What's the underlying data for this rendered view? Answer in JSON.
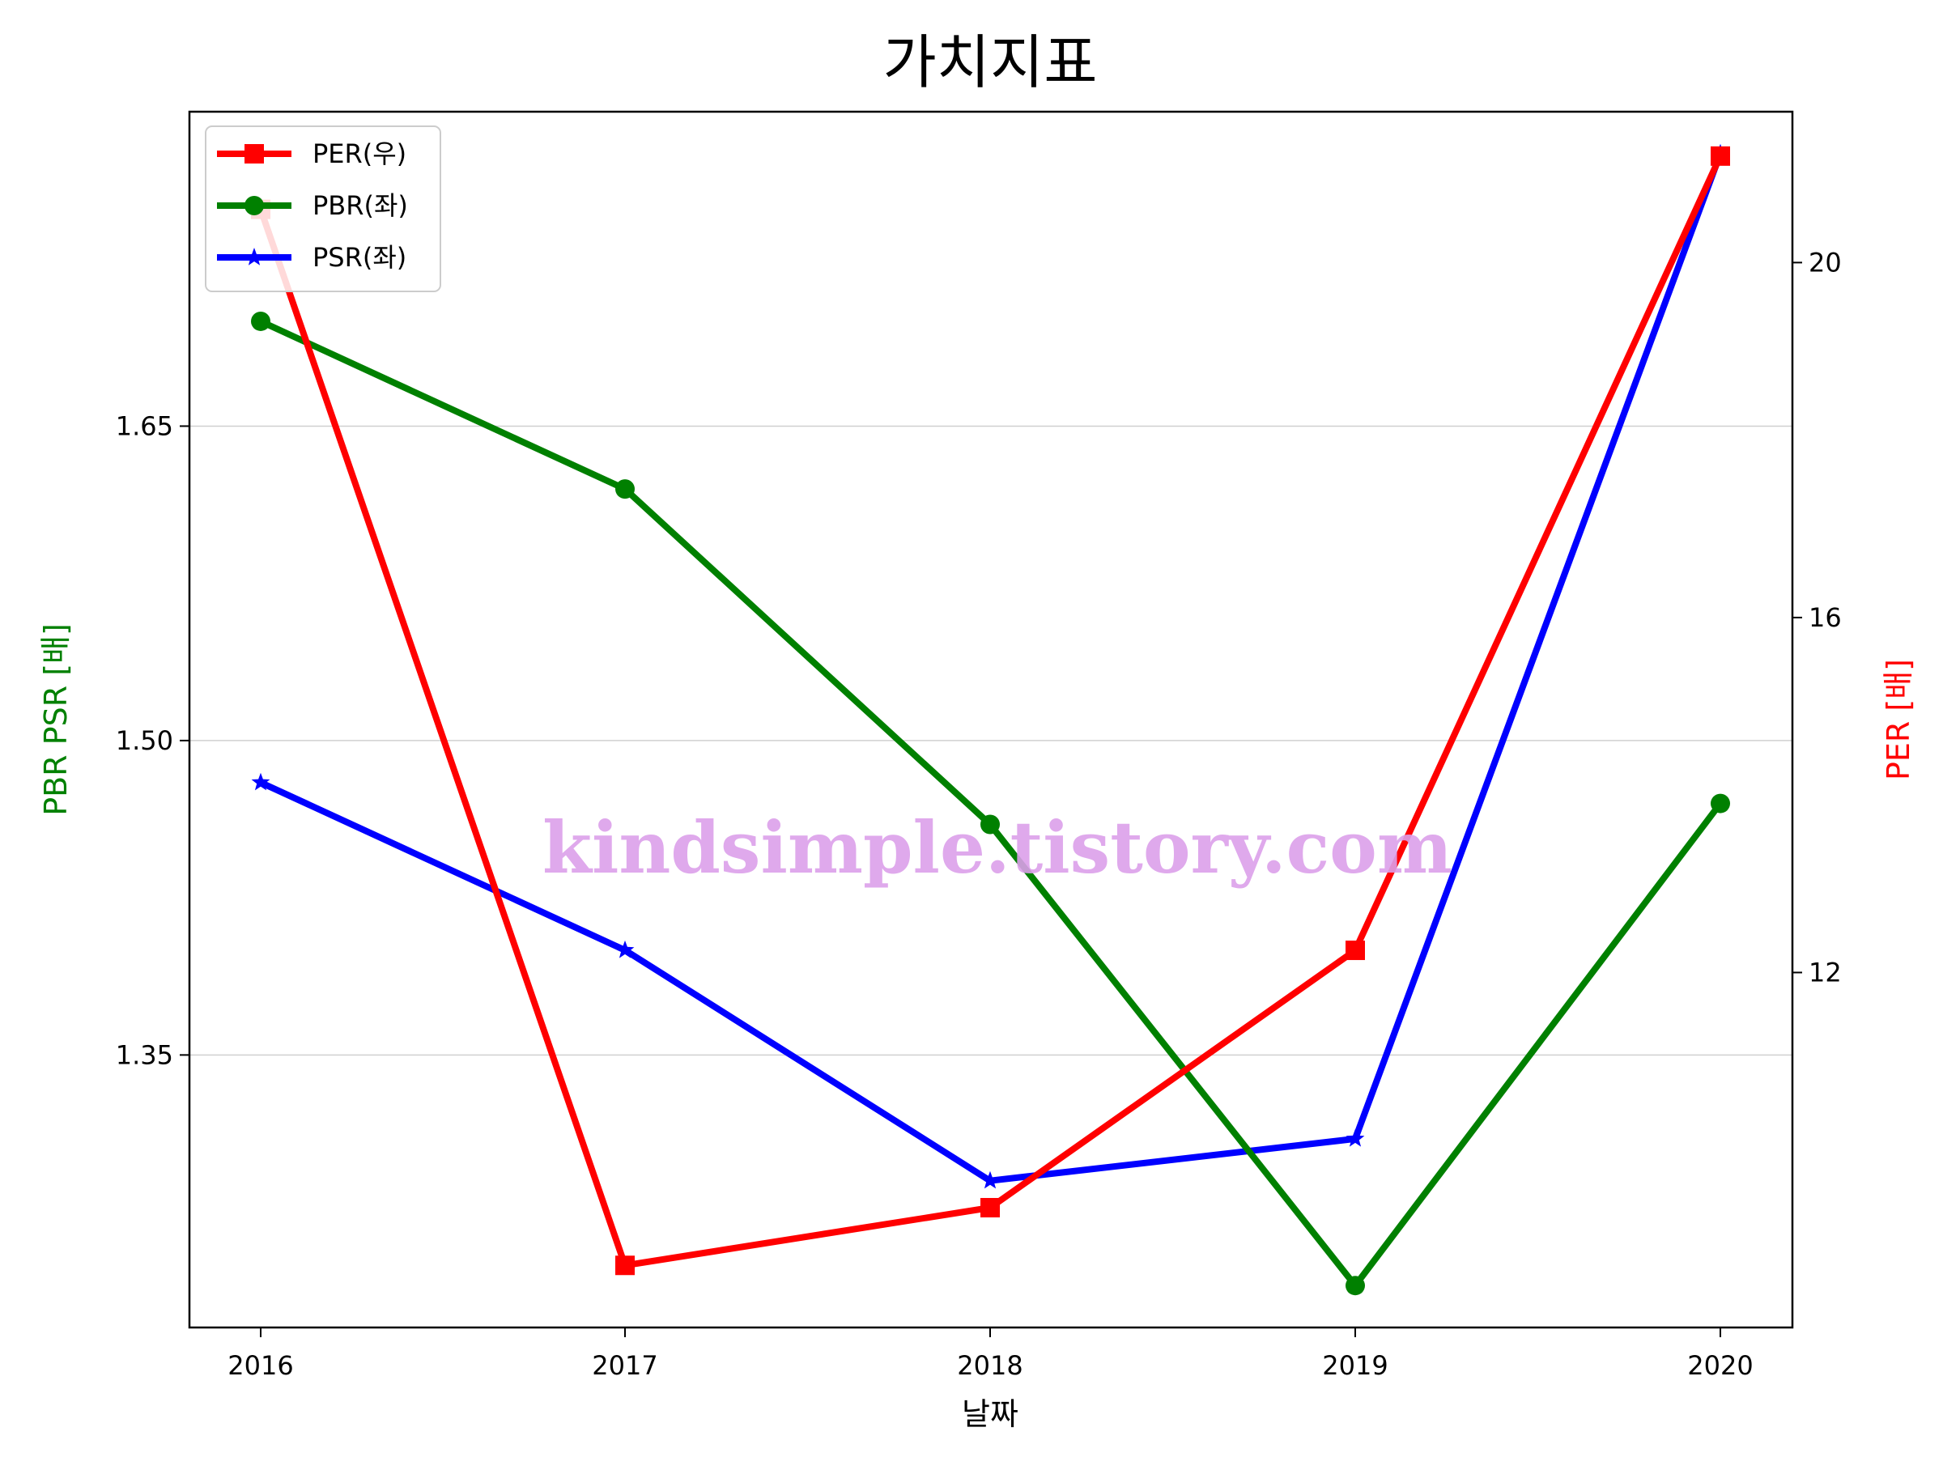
{
  "chart_data": {
    "type": "line",
    "title": "가치지표",
    "xlabel": "날짜",
    "ylabel_left": "PBR PSR [배]",
    "ylabel_right": "PER [배]",
    "categories": [
      "2016",
      "2017",
      "2018",
      "2019",
      "2020"
    ],
    "y_left": {
      "lim": [
        1.22,
        1.8
      ],
      "ticks": [
        "1.35",
        "1.50",
        "1.65"
      ],
      "tick_values": [
        1.35,
        1.5,
        1.65
      ],
      "grid": true
    },
    "y_right": {
      "lim": [
        8.0,
        21.7
      ],
      "ticks": [
        "12",
        "16",
        "20"
      ],
      "tick_values": [
        12,
        16,
        20
      ]
    },
    "series": [
      {
        "name": "PER(우)",
        "axis": "right",
        "marker": "square",
        "color": "#ff0000",
        "values": [
          20.6,
          8.7,
          9.35,
          12.25,
          21.2
        ]
      },
      {
        "name": "PBR(좌)",
        "axis": "left",
        "marker": "circle",
        "color": "#008000",
        "values": [
          1.7,
          1.62,
          1.46,
          1.24,
          1.47
        ]
      },
      {
        "name": "PSR(좌)",
        "axis": "left",
        "marker": "star",
        "color": "#0000ff",
        "values": [
          1.48,
          1.4,
          1.29,
          1.31,
          1.78
        ]
      }
    ],
    "legend_position": "top-left",
    "watermark": "kindsimple.tistory.com"
  }
}
